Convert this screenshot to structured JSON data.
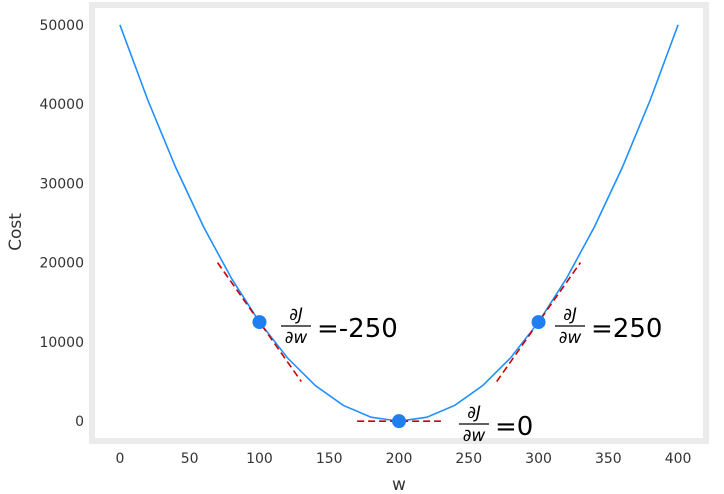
{
  "chart_data": {
    "type": "line",
    "xlabel": "w",
    "ylabel": "Cost",
    "xlim": [
      -20,
      420
    ],
    "ylim": [
      -2500,
      52500
    ],
    "xticks": [
      0,
      50,
      100,
      150,
      200,
      250,
      300,
      350,
      400
    ],
    "yticks": [
      0,
      10000,
      20000,
      30000,
      40000,
      50000
    ],
    "series": [
      {
        "color": "#1f90ff",
        "x": [
          0,
          20,
          40,
          60,
          80,
          100,
          120,
          140,
          160,
          180,
          200,
          220,
          240,
          260,
          280,
          300,
          320,
          340,
          360,
          380,
          400
        ],
        "values": [
          50000,
          40500,
          32000,
          24500,
          18000,
          12500,
          8000,
          4500,
          2000,
          500,
          0,
          500,
          2000,
          4500,
          8000,
          12500,
          18000,
          24500,
          32000,
          40500,
          50000
        ]
      }
    ],
    "points": {
      "color": "#1f7ff0",
      "x": [
        100,
        200,
        300
      ],
      "values": [
        12500,
        0,
        12500
      ]
    },
    "tangents": {
      "color": "#cc0000",
      "lines": [
        {
          "x": [
            70,
            130
          ],
          "values": [
            20000,
            5000
          ]
        },
        {
          "x": [
            170,
            230
          ],
          "values": [
            0,
            0
          ]
        },
        {
          "x": [
            270,
            330
          ],
          "values": [
            5000,
            20000
          ]
        }
      ]
    },
    "annotations": [
      {
        "numerator": "∂J",
        "denominator": "∂w",
        "text": "=-250"
      },
      {
        "numerator": "∂J",
        "denominator": "∂w",
        "text": "=0"
      },
      {
        "numerator": "∂J",
        "denominator": "∂w",
        "text": "=250"
      }
    ]
  }
}
